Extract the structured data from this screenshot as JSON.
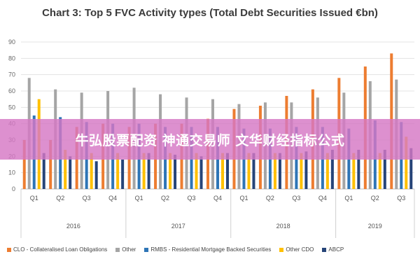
{
  "chart_data": {
    "type": "bar",
    "title": "Chart 3: Top 5 FVC Activity types (Total Debt Securities Issued €bn)",
    "xlabel": "",
    "ylabel": "",
    "ylim": [
      0,
      90
    ],
    "yticks": [
      0,
      10,
      20,
      30,
      40,
      50,
      60,
      70,
      80,
      90
    ],
    "grid": true,
    "legend_position": "bottom",
    "categories": [
      "Q1",
      "Q2",
      "Q3",
      "Q4",
      "Q1",
      "Q2",
      "Q3",
      "Q4",
      "Q1",
      "Q2",
      "Q3",
      "Q4",
      "Q1",
      "Q2",
      "Q3"
    ],
    "year_groups": [
      {
        "label": "2016",
        "count": 4
      },
      {
        "label": "2017",
        "count": 4
      },
      {
        "label": "2018",
        "count": 4
      },
      {
        "label": "2019",
        "count": 3
      }
    ],
    "series": [
      {
        "name": "CLO - Collateralised Loan Obligations",
        "color": "#ed7d31",
        "values": [
          30,
          30,
          38,
          40,
          38,
          40,
          40,
          43,
          49,
          51,
          57,
          61,
          68,
          75,
          83
        ]
      },
      {
        "name": "Other",
        "color": "#a5a5a5",
        "values": [
          68,
          61,
          59,
          60,
          62,
          58,
          56,
          55,
          52,
          53,
          53,
          56,
          59,
          66,
          67
        ]
      },
      {
        "name": "RMBS - Residential Mortgage Backed Securities",
        "color": "#2e75b6",
        "values": [
          45,
          44,
          41,
          40,
          40,
          38,
          38,
          38,
          37,
          37,
          38,
          38,
          37,
          42,
          41
        ]
      },
      {
        "name": "Other CDO",
        "color": "#ffc000",
        "values": [
          55,
          24,
          22,
          22,
          22,
          22,
          22,
          22,
          22,
          22,
          22,
          22,
          22,
          22,
          32
        ]
      },
      {
        "name": "ABCP",
        "color": "#264478",
        "values": [
          22,
          20,
          17,
          18,
          22,
          21,
          20,
          22,
          22,
          22,
          23,
          24,
          24,
          24,
          25
        ]
      }
    ]
  },
  "banner": {
    "text": "牛弘股票配资 神通交易师 文华财经指标公式"
  }
}
